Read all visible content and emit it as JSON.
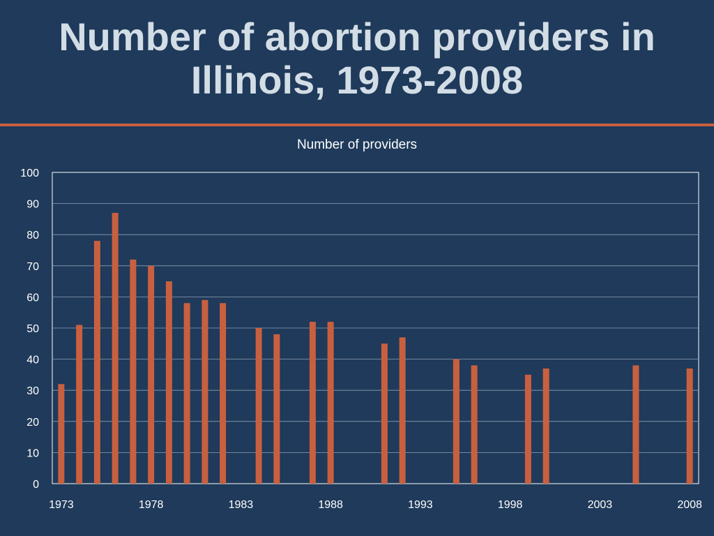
{
  "slide": {
    "title_line1": "Number of abortion providers in",
    "title_line2": "Illinois, 1973-2008",
    "accent_color": "#c8603f",
    "background_color": "#1f3a5a"
  },
  "chart_data": {
    "type": "bar",
    "title": "Number of providers",
    "xlabel": "",
    "ylabel": "",
    "ylim": [
      0,
      100
    ],
    "y_ticks": [
      0,
      10,
      20,
      30,
      40,
      50,
      60,
      70,
      80,
      90,
      100
    ],
    "x_range": [
      1973,
      2008
    ],
    "x_tick_labels": [
      "1973",
      "1978",
      "1983",
      "1988",
      "1993",
      "1998",
      "2003",
      "2008"
    ],
    "bar_color": "#c8603f",
    "grid": true,
    "legend": "none",
    "x": [
      1973,
      1974,
      1975,
      1976,
      1977,
      1978,
      1979,
      1980,
      1981,
      1982,
      1984,
      1985,
      1987,
      1988,
      1991,
      1992,
      1995,
      1996,
      1999,
      2000,
      2005,
      2008
    ],
    "values": [
      32,
      51,
      78,
      87,
      72,
      70,
      65,
      58,
      59,
      58,
      50,
      48,
      52,
      52,
      45,
      47,
      40,
      38,
      35,
      37,
      38,
      37
    ]
  }
}
